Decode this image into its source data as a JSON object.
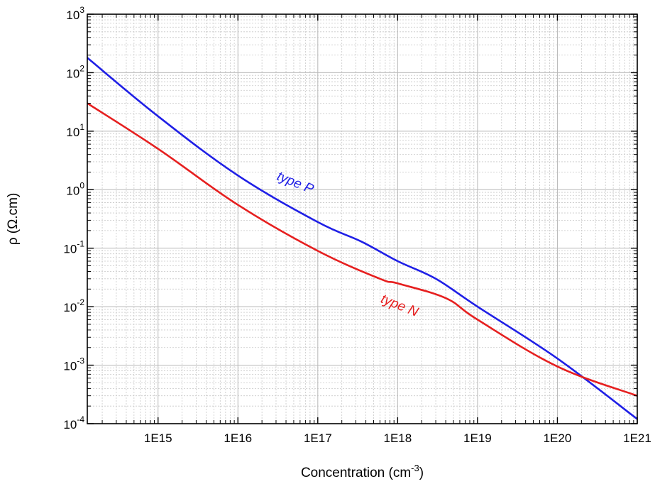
{
  "chart_data": {
    "type": "line",
    "xscale": "log",
    "yscale": "log",
    "xlim": [
      130000000000000.0,
      1e+21
    ],
    "ylim": [
      0.0001,
      1000.0
    ],
    "grid": true,
    "xlabel": "Concentration (cm",
    "xlabel_sup": "-3",
    "xlabel_suffix": ")",
    "ylabel": "ρ  (Ω.cm)",
    "xticks": [
      {
        "value": 1000000000000000.0,
        "label": "1E15"
      },
      {
        "value": 1e+16,
        "label": "1E16"
      },
      {
        "value": 1e+17,
        "label": "1E17"
      },
      {
        "value": 1e+18,
        "label": "1E18"
      },
      {
        "value": 1e+19,
        "label": "1E19"
      },
      {
        "value": 1e+20,
        "label": "1E20"
      },
      {
        "value": 1e+21,
        "label": "1E21"
      }
    ],
    "yticks": [
      {
        "value": 1000.0,
        "base": "10",
        "exp": "3"
      },
      {
        "value": 100.0,
        "base": "10",
        "exp": "2"
      },
      {
        "value": 10.0,
        "base": "10",
        "exp": "1"
      },
      {
        "value": 1.0,
        "base": "10",
        "exp": "0"
      },
      {
        "value": 0.1,
        "base": "10",
        "exp": "-1"
      },
      {
        "value": 0.01,
        "base": "10",
        "exp": "-2"
      },
      {
        "value": 0.001,
        "base": "10",
        "exp": "-3"
      },
      {
        "value": 0.0001,
        "base": "10",
        "exp": "-4"
      }
    ],
    "series": [
      {
        "name": "type P",
        "color": "#1f1fe6",
        "x": [
          130000000000000.0,
          1000000000000000.0,
          1e+16,
          1e+17,
          3.5e+17,
          1e+18,
          3e+18,
          1e+19,
          1e+20,
          1e+21
        ],
        "y": [
          180,
          18,
          1.75,
          0.28,
          0.13,
          0.06,
          0.03,
          0.01,
          0.0013,
          0.00012
        ]
      },
      {
        "name": "type N",
        "color": "#e61f1f",
        "x": [
          130000000000000.0,
          1000000000000000.0,
          1e+16,
          1e+17,
          6e+17,
          1e+18,
          4e+18,
          1e+19,
          1e+20,
          1e+21
        ],
        "y": [
          30,
          5,
          0.55,
          0.09,
          0.03,
          0.025,
          0.014,
          0.006,
          0.00095,
          0.0003
        ]
      }
    ],
    "annotations": [
      {
        "text": "type P",
        "series": "type P",
        "x": 3e+16,
        "y": 1.5
      },
      {
        "text": "type N",
        "series": "type N",
        "x": 6e+17,
        "y": 0.012
      }
    ]
  }
}
